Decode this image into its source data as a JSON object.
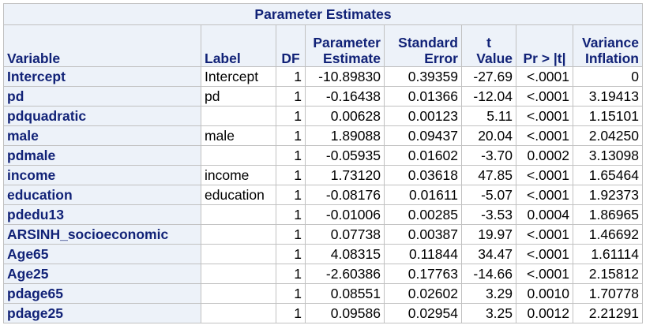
{
  "table": {
    "title": "Parameter Estimates",
    "headers": {
      "variable": [
        "Variable"
      ],
      "label": [
        "Label"
      ],
      "df": [
        "DF"
      ],
      "estimate": [
        "Parameter",
        "Estimate"
      ],
      "stderr": [
        "Standard",
        "Error"
      ],
      "tvalue": [
        "t",
        "Value"
      ],
      "pvalue": [
        "Pr > |t|"
      ],
      "vif": [
        "Variance",
        "Inflation"
      ]
    },
    "rows": [
      {
        "variable": "Intercept",
        "label": "Intercept",
        "df": "1",
        "estimate": "-10.89830",
        "stderr": "0.39359",
        "t": "-27.69",
        "p": "<.0001",
        "vif": "0"
      },
      {
        "variable": "pd",
        "label": "pd",
        "df": "1",
        "estimate": "-0.16438",
        "stderr": "0.01366",
        "t": "-12.04",
        "p": "<.0001",
        "vif": "3.19413"
      },
      {
        "variable": "pdquadratic",
        "label": "",
        "df": "1",
        "estimate": "0.00628",
        "stderr": "0.00123",
        "t": "5.11",
        "p": "<.0001",
        "vif": "1.15101"
      },
      {
        "variable": "male",
        "label": "male",
        "df": "1",
        "estimate": "1.89088",
        "stderr": "0.09437",
        "t": "20.04",
        "p": "<.0001",
        "vif": "2.04250"
      },
      {
        "variable": "pdmale",
        "label": "",
        "df": "1",
        "estimate": "-0.05935",
        "stderr": "0.01602",
        "t": "-3.70",
        "p": "0.0002",
        "vif": "3.13098"
      },
      {
        "variable": "income",
        "label": "income",
        "df": "1",
        "estimate": "1.73120",
        "stderr": "0.03618",
        "t": "47.85",
        "p": "<.0001",
        "vif": "1.65464"
      },
      {
        "variable": "education",
        "label": "education",
        "df": "1",
        "estimate": "-0.08176",
        "stderr": "0.01611",
        "t": "-5.07",
        "p": "<.0001",
        "vif": "1.92373"
      },
      {
        "variable": "pdedu13",
        "label": "",
        "df": "1",
        "estimate": "-0.01006",
        "stderr": "0.00285",
        "t": "-3.53",
        "p": "0.0004",
        "vif": "1.86965"
      },
      {
        "variable": "ARSINH_socioeconomic",
        "label": "",
        "df": "1",
        "estimate": "0.07738",
        "stderr": "0.00387",
        "t": "19.97",
        "p": "<.0001",
        "vif": "1.46692"
      },
      {
        "variable": "Age65",
        "label": "",
        "df": "1",
        "estimate": "4.08315",
        "stderr": "0.11844",
        "t": "34.47",
        "p": "<.0001",
        "vif": "1.61114"
      },
      {
        "variable": "Age25",
        "label": "",
        "df": "1",
        "estimate": "-2.60386",
        "stderr": "0.17763",
        "t": "-14.66",
        "p": "<.0001",
        "vif": "2.15812"
      },
      {
        "variable": "pdage65",
        "label": "",
        "df": "1",
        "estimate": "0.08551",
        "stderr": "0.02602",
        "t": "3.29",
        "p": "0.0010",
        "vif": "1.70778"
      },
      {
        "variable": "pdage25",
        "label": "",
        "df": "1",
        "estimate": "0.09586",
        "stderr": "0.02954",
        "t": "3.25",
        "p": "0.0012",
        "vif": "2.21291"
      }
    ]
  },
  "colors": {
    "header_bg": "#edf2f9",
    "header_text": "#112277",
    "grid": "#c1c1c1"
  }
}
